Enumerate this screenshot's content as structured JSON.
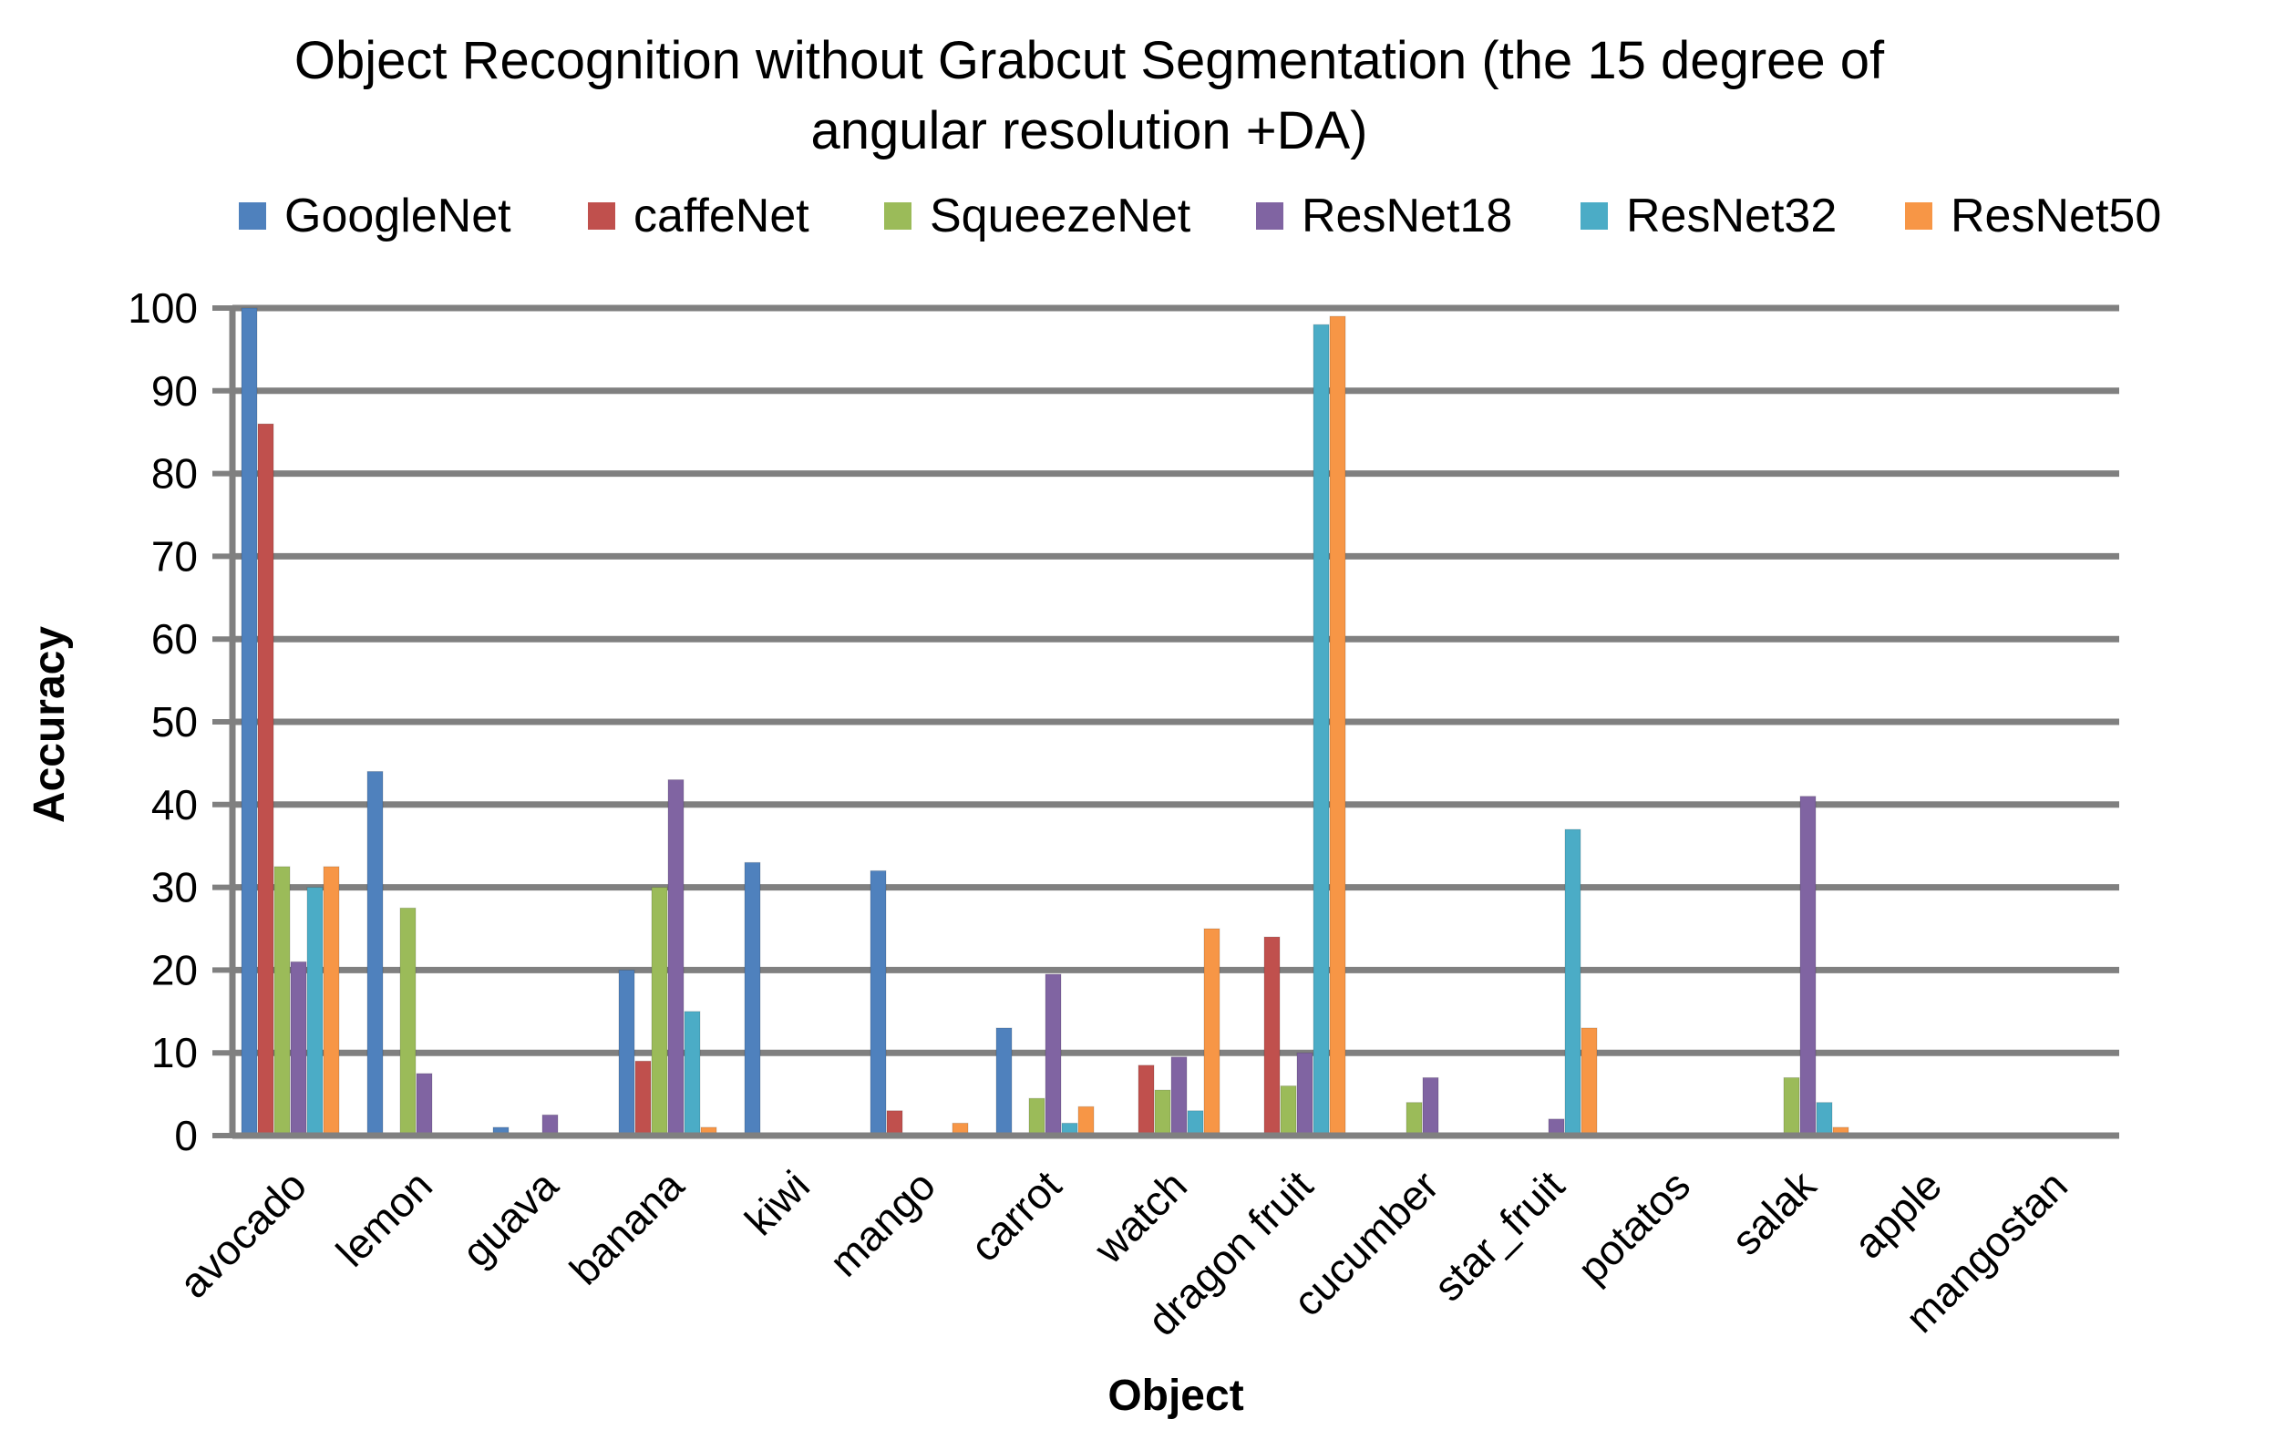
{
  "chart_data": {
    "type": "bar",
    "title_lines": [
      "Object Recognition without Grabcut Segmentation  (the 15 degree of",
      "angular resolution +DA)"
    ],
    "xlabel": "Object",
    "ylabel": "Accuracy",
    "ylim": [
      0,
      100
    ],
    "yticks": [
      0,
      10,
      20,
      30,
      40,
      50,
      60,
      70,
      80,
      90,
      100
    ],
    "grid": true,
    "legend_position": "top",
    "categories": [
      "avocado",
      "lemon",
      "guava",
      "banana",
      "kiwi",
      "mango",
      "carrot",
      "watch",
      "dragon fruit",
      "cucumber",
      "star_fruit",
      "potatos",
      "salak",
      "apple",
      "mangostan"
    ],
    "series": [
      {
        "name": "GoogleNet",
        "color": "#4F81BD",
        "values": [
          100,
          44,
          1,
          20,
          33,
          32,
          13,
          0,
          0,
          0,
          0,
          0,
          0,
          0,
          0
        ]
      },
      {
        "name": "caffeNet",
        "color": "#C0504D",
        "values": [
          86,
          0,
          0,
          9,
          0,
          3,
          0,
          8.5,
          24,
          0,
          0,
          0,
          0,
          0,
          0
        ]
      },
      {
        "name": "SqueezeNet",
        "color": "#9BBB59",
        "values": [
          32.5,
          27.5,
          0,
          30,
          0,
          0,
          4.5,
          5.5,
          6,
          4,
          0,
          0,
          7,
          0,
          0
        ]
      },
      {
        "name": "ResNet18",
        "color": "#8064A2",
        "values": [
          21,
          7.5,
          2.5,
          43,
          0,
          0,
          19.5,
          9.5,
          10,
          7,
          2,
          0,
          41,
          0,
          0
        ]
      },
      {
        "name": "ResNet32",
        "color": "#4BACC6",
        "values": [
          30,
          0,
          0,
          15,
          0,
          0,
          1.5,
          3,
          98,
          0,
          37,
          0,
          4,
          0,
          0
        ]
      },
      {
        "name": "ResNet50",
        "color": "#F79646",
        "values": [
          32.5,
          0,
          0,
          1,
          0,
          1.5,
          3.5,
          25,
          99,
          0,
          13,
          0,
          1,
          0,
          0
        ]
      }
    ]
  }
}
